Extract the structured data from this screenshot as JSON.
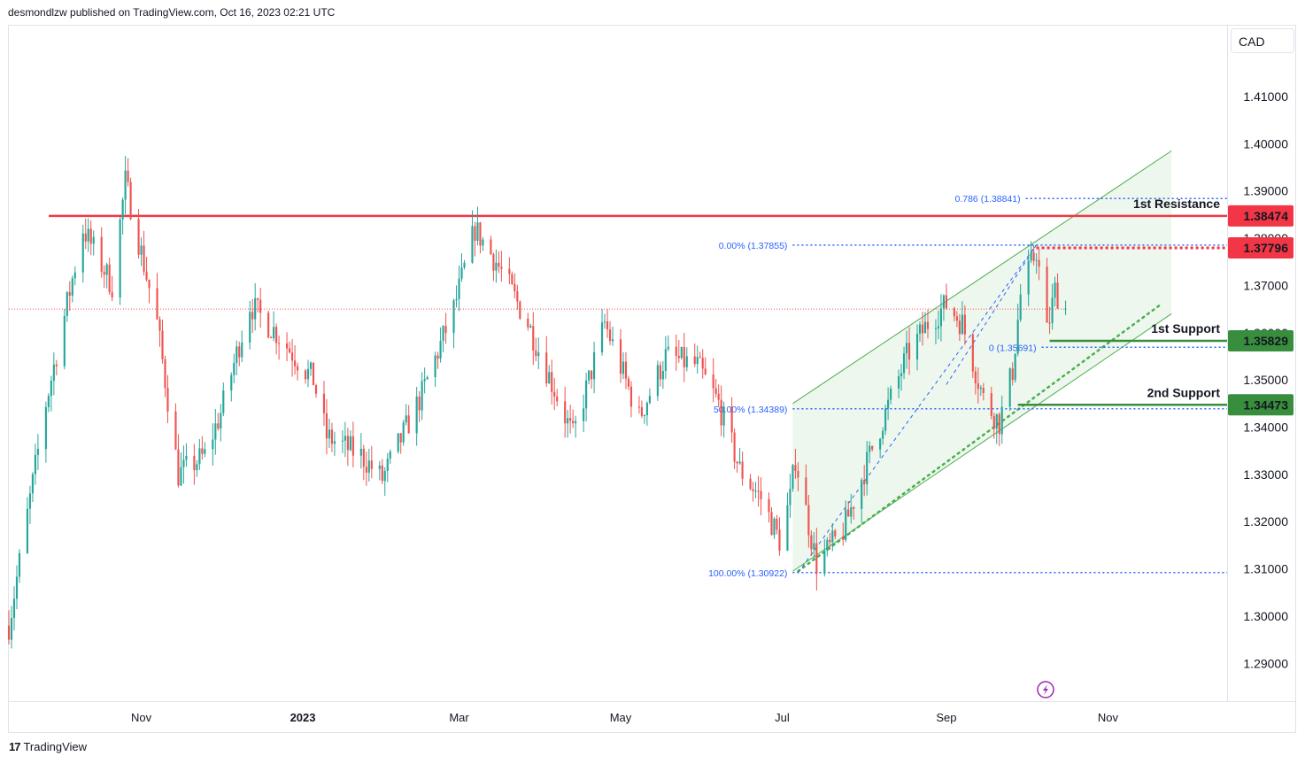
{
  "header": {
    "attribution": "desmondlzw published on TradingView.com, Oct 16, 2023 02:21 UTC"
  },
  "footer": {
    "logo_mark": "17",
    "brand": "TradingView"
  },
  "currency": "CAD",
  "colors": {
    "up": "#26a69a",
    "down": "#ef5350",
    "resistance": "#f23645",
    "support": "#388e3c",
    "fib": "#2962ff",
    "channel": "#4caf50"
  },
  "chart_data": {
    "type": "candlestick",
    "symbol_currency": "CAD",
    "ylim": [
      1.282,
      1.425
    ],
    "y_ticks": [
      "1.29000",
      "1.30000",
      "1.31000",
      "1.32000",
      "1.33000",
      "1.34000",
      "1.35000",
      "1.36000",
      "1.37000",
      "1.38000",
      "1.39000",
      "1.40000",
      "1.41000"
    ],
    "x_ticks": [
      "Nov",
      "2023",
      "Mar",
      "May",
      "Jul",
      "Sep",
      "Nov"
    ],
    "x_tick_dates": [
      "2022-11-01",
      "2023-01-01",
      "2023-03-01",
      "2023-05-01",
      "2023-07-01",
      "2023-09-01",
      "2023-11-01"
    ],
    "x_range": [
      "2022-09-12",
      "2023-12-16"
    ],
    "close_path": [
      [
        "2022-09-12",
        1.298
      ],
      [
        "2022-09-26",
        1.345
      ],
      [
        "2022-10-10",
        1.382
      ],
      [
        "2022-10-21",
        1.37
      ],
      [
        "2022-10-26",
        1.392
      ],
      [
        "2022-11-07",
        1.362
      ],
      [
        "2022-11-15",
        1.33
      ],
      [
        "2022-11-25",
        1.334
      ],
      [
        "2022-12-01",
        1.343
      ],
      [
        "2022-12-12",
        1.366
      ],
      [
        "2022-12-22",
        1.36
      ],
      [
        "2023-01-05",
        1.35
      ],
      [
        "2023-01-10",
        1.338
      ],
      [
        "2023-01-23",
        1.334
      ],
      [
        "2023-01-31",
        1.329
      ],
      [
        "2023-02-15",
        1.347
      ],
      [
        "2023-02-27",
        1.365
      ],
      [
        "2023-03-07",
        1.382
      ],
      [
        "2023-03-15",
        1.375
      ],
      [
        "2023-03-27",
        1.362
      ],
      [
        "2023-04-06",
        1.348
      ],
      [
        "2023-04-13",
        1.338
      ],
      [
        "2023-04-25",
        1.362
      ],
      [
        "2023-05-08",
        1.342
      ],
      [
        "2023-05-18",
        1.355
      ],
      [
        "2023-05-30",
        1.353
      ],
      [
        "2023-06-07",
        1.345
      ],
      [
        "2023-06-15",
        1.331
      ],
      [
        "2023-06-23",
        1.325
      ],
      [
        "2023-06-30",
        1.316
      ],
      [
        "2023-07-04",
        1.325
      ],
      [
        "2023-07-06",
        1.3335
      ],
      [
        "2023-07-14",
        1.311
      ],
      [
        "2023-07-24",
        1.318
      ],
      [
        "2023-08-03",
        1.334
      ],
      [
        "2023-08-17",
        1.355
      ],
      [
        "2023-08-25",
        1.362
      ],
      [
        "2023-09-01",
        1.366
      ],
      [
        "2023-09-07",
        1.362
      ],
      [
        "2023-09-15",
        1.346
      ],
      [
        "2023-09-21",
        1.341
      ],
      [
        "2023-09-26",
        1.352
      ],
      [
        "2023-09-29",
        1.368
      ],
      [
        "2023-10-05",
        1.3775
      ],
      [
        "2023-10-09",
        1.36
      ],
      [
        "2023-10-12",
        1.369
      ],
      [
        "2023-10-16",
        1.365
      ]
    ],
    "last_price": 1.365,
    "annotations": {
      "horizontal_levels": [
        {
          "label": "1st Resistance",
          "price_label": "1.38474",
          "price": 1.38474,
          "color": "#f23645"
        },
        {
          "label": "",
          "price_label": "1.37796",
          "price": 1.37796,
          "color": "#f23645"
        },
        {
          "label": "1st Support",
          "price_label": "1.35829",
          "price": 1.35829,
          "color": "#388e3c"
        },
        {
          "label": "2nd Support",
          "price_label": "1.34473",
          "price": 1.34473,
          "color": "#388e3c"
        }
      ],
      "fibonacci": [
        {
          "label": "0.786 (1.38841)",
          "price": 1.38841
        },
        {
          "label": "0.00% (1.37855)",
          "price": 1.37855
        },
        {
          "label": "0 (1.35691)",
          "price": 1.35691
        },
        {
          "label": "50.00% (1.34389)",
          "price": 1.34389
        },
        {
          "label": "100.00% (1.30922)",
          "price": 1.30922
        }
      ],
      "ascending_channel": {
        "lower_start": [
          "2023-07-05",
          1.3095
        ],
        "lower_end": [
          "2023-11-25",
          1.364
        ],
        "upper_start": [
          "2023-07-05",
          1.345
        ],
        "upper_end": [
          "2023-11-25",
          1.3985
        ]
      }
    }
  }
}
